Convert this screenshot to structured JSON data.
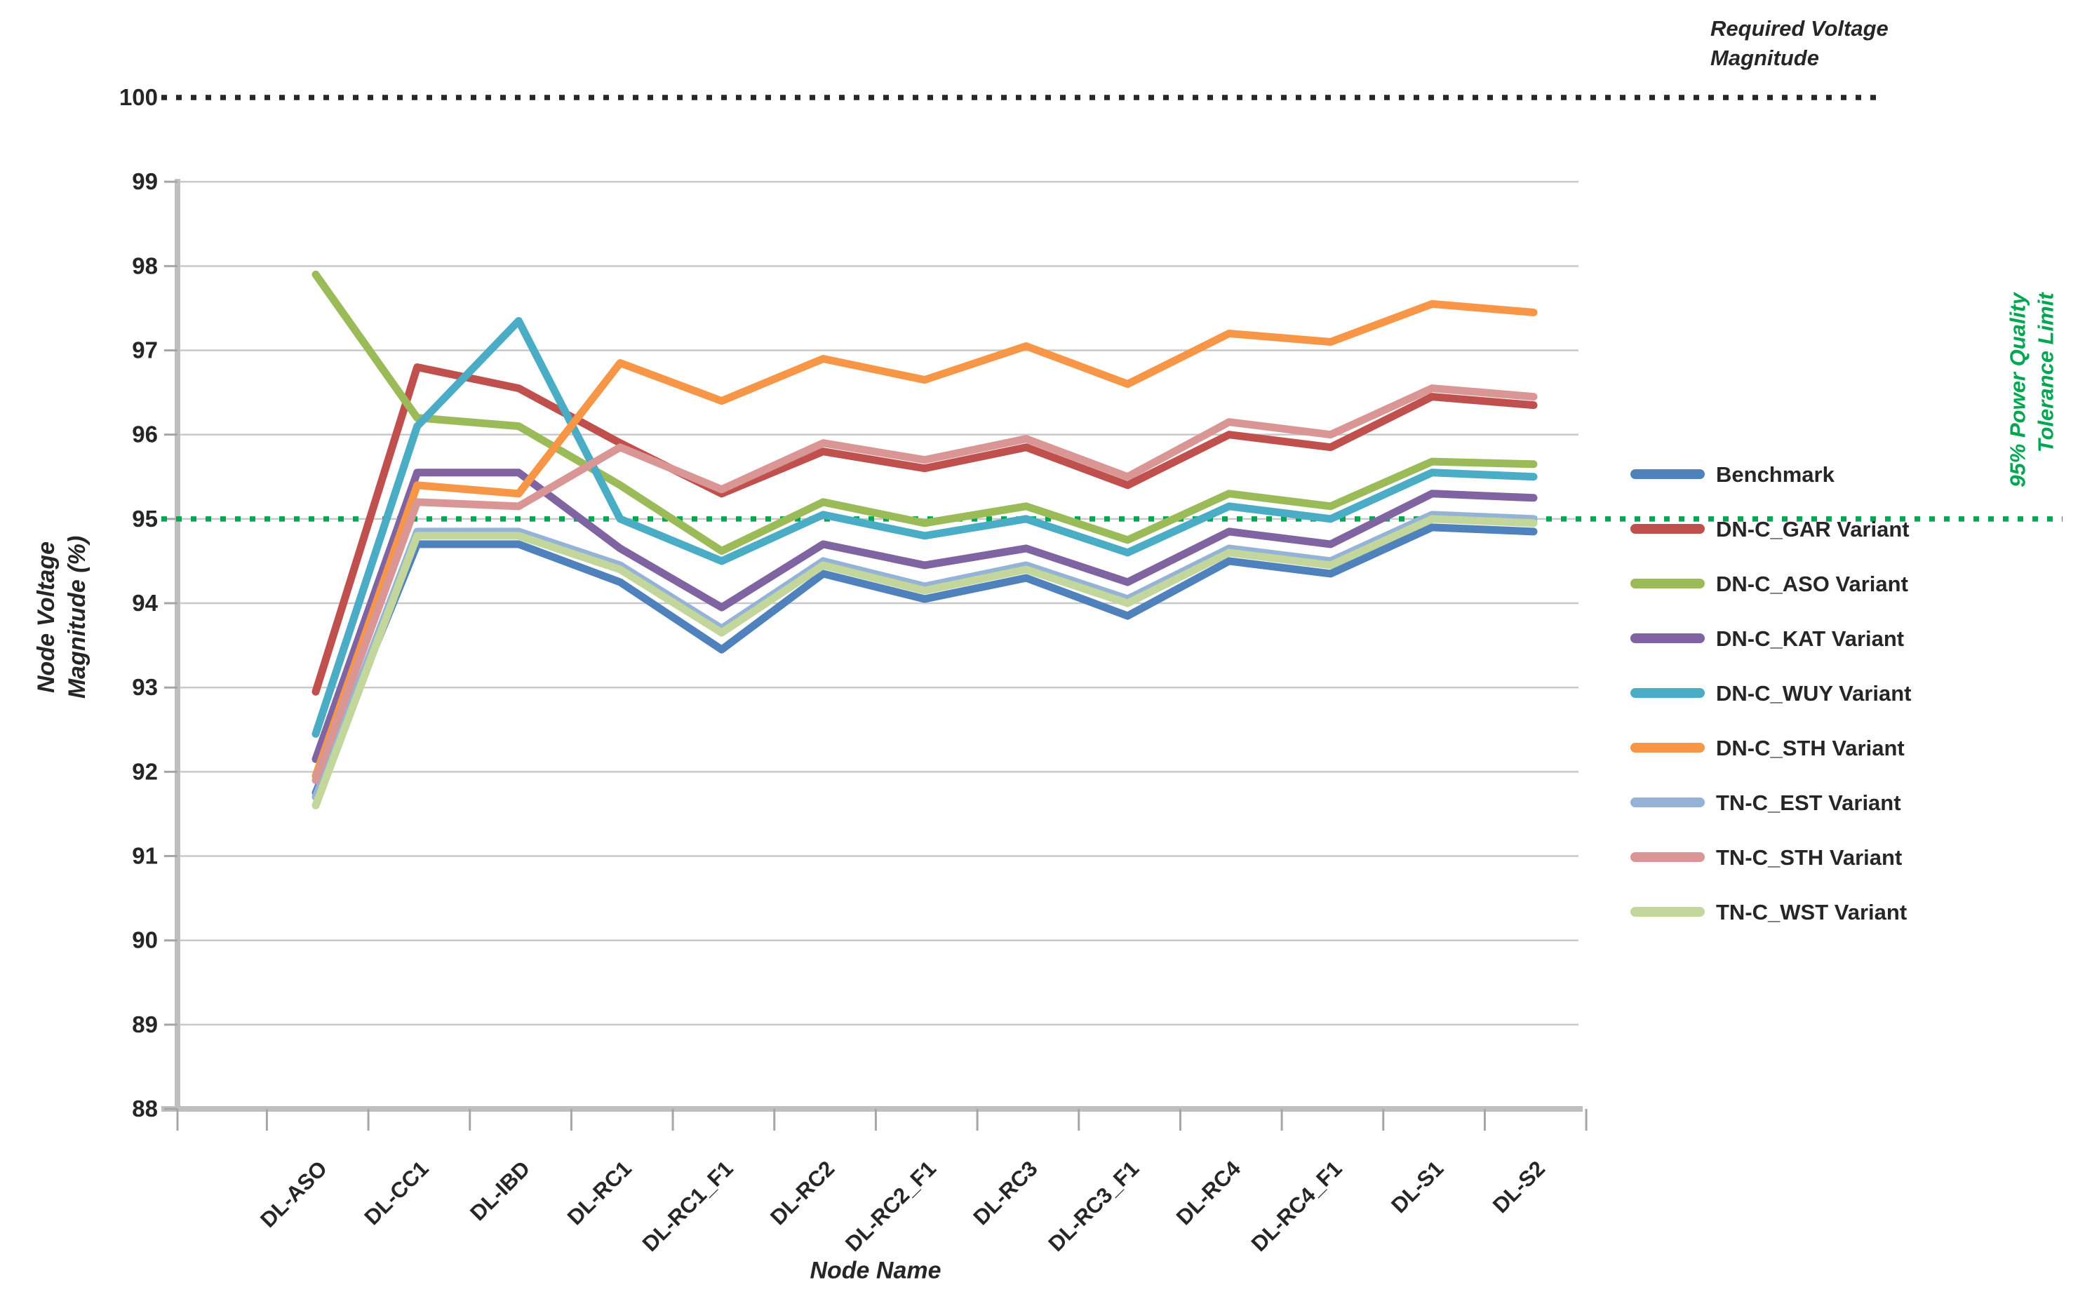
{
  "figure": {
    "y_axis_title_line1": "Node Voltage",
    "y_axis_title_line2": "Magnitude (%)",
    "x_axis_title": "Node Name",
    "annotation_required_line1": "Required Voltage",
    "annotation_required_line2": "Magnitude",
    "annotation_tolerance_line1": "95% Power Quality",
    "annotation_tolerance_line2": "Tolerance Limit"
  },
  "chart_data": {
    "type": "line",
    "title": "",
    "xlabel": "Node Name",
    "ylabel": "Node Voltage Magnitude (%)",
    "ylim": [
      88,
      100
    ],
    "y_ticks": [
      100,
      99,
      98,
      97,
      96,
      95,
      94,
      93,
      92,
      91,
      90,
      89,
      88
    ],
    "grid": true,
    "legend_position": "right",
    "categories": [
      "DL-ASO",
      "DL-CC1",
      "DL-IBD",
      "DL-RC1",
      "DL-RC1_F1",
      "DL-RC2",
      "DL-RC2_F1",
      "DL-RC3",
      "DL-RC3_F1",
      "DL-RC4",
      "DL-RC4_F1",
      "DL-S1",
      "DL-S2"
    ],
    "series": [
      {
        "name": "Benchmark",
        "color": "#4F81BD",
        "values": [
          91.75,
          94.7,
          94.7,
          94.25,
          93.45,
          94.35,
          94.05,
          94.3,
          93.85,
          94.5,
          94.35,
          94.9,
          94.85
        ]
      },
      {
        "name": "DN-C_GAR Variant",
        "color": "#C0504D",
        "values": [
          92.95,
          96.8,
          96.55,
          95.9,
          95.3,
          95.8,
          95.6,
          95.85,
          95.4,
          96.0,
          95.85,
          96.45,
          96.35
        ]
      },
      {
        "name": "DN-C_ASO Variant",
        "color": "#9BBB59",
        "values": [
          97.9,
          96.2,
          96.1,
          95.4,
          94.62,
          95.2,
          94.95,
          95.15,
          94.75,
          95.3,
          95.15,
          95.68,
          95.65
        ]
      },
      {
        "name": "DN-C_KAT Variant",
        "color": "#8064A2",
        "values": [
          92.15,
          95.55,
          95.55,
          94.65,
          93.95,
          94.7,
          94.45,
          94.65,
          94.25,
          94.85,
          94.7,
          95.3,
          95.25
        ]
      },
      {
        "name": "DN-C_WUY Variant",
        "color": "#4BACC6",
        "values": [
          92.45,
          96.1,
          97.35,
          95.0,
          94.5,
          95.05,
          94.8,
          95.0,
          94.6,
          95.15,
          95.0,
          95.55,
          95.5
        ]
      },
      {
        "name": "DN-C_STH Variant",
        "color": "#F79646",
        "values": [
          91.95,
          95.4,
          95.3,
          96.85,
          96.4,
          96.9,
          96.65,
          97.05,
          96.6,
          97.2,
          97.1,
          97.55,
          97.45
        ]
      },
      {
        "name": "TN-C_EST Variant",
        "color": "#95B3D7",
        "values": [
          91.7,
          94.85,
          94.85,
          94.45,
          93.7,
          94.5,
          94.2,
          94.45,
          94.05,
          94.65,
          94.5,
          95.05,
          95.0
        ]
      },
      {
        "name": "TN-C_STH Variant",
        "color": "#D99694",
        "values": [
          91.9,
          95.2,
          95.15,
          95.85,
          95.35,
          95.9,
          95.7,
          95.95,
          95.5,
          96.15,
          96.0,
          96.55,
          96.45
        ]
      },
      {
        "name": "TN-C_WST Variant",
        "color": "#C3D69B",
        "values": [
          91.6,
          94.8,
          94.8,
          94.4,
          93.65,
          94.45,
          94.15,
          94.4,
          94.0,
          94.6,
          94.45,
          95.0,
          94.95
        ]
      }
    ],
    "reference_lines": [
      {
        "label": "Required Voltage Magnitude",
        "value": 100,
        "color": "#262626",
        "style": "dotted"
      },
      {
        "label": "95% Power Quality Tolerance Limit",
        "value": 95,
        "color": "#00A650",
        "style": "dotted"
      }
    ]
  }
}
